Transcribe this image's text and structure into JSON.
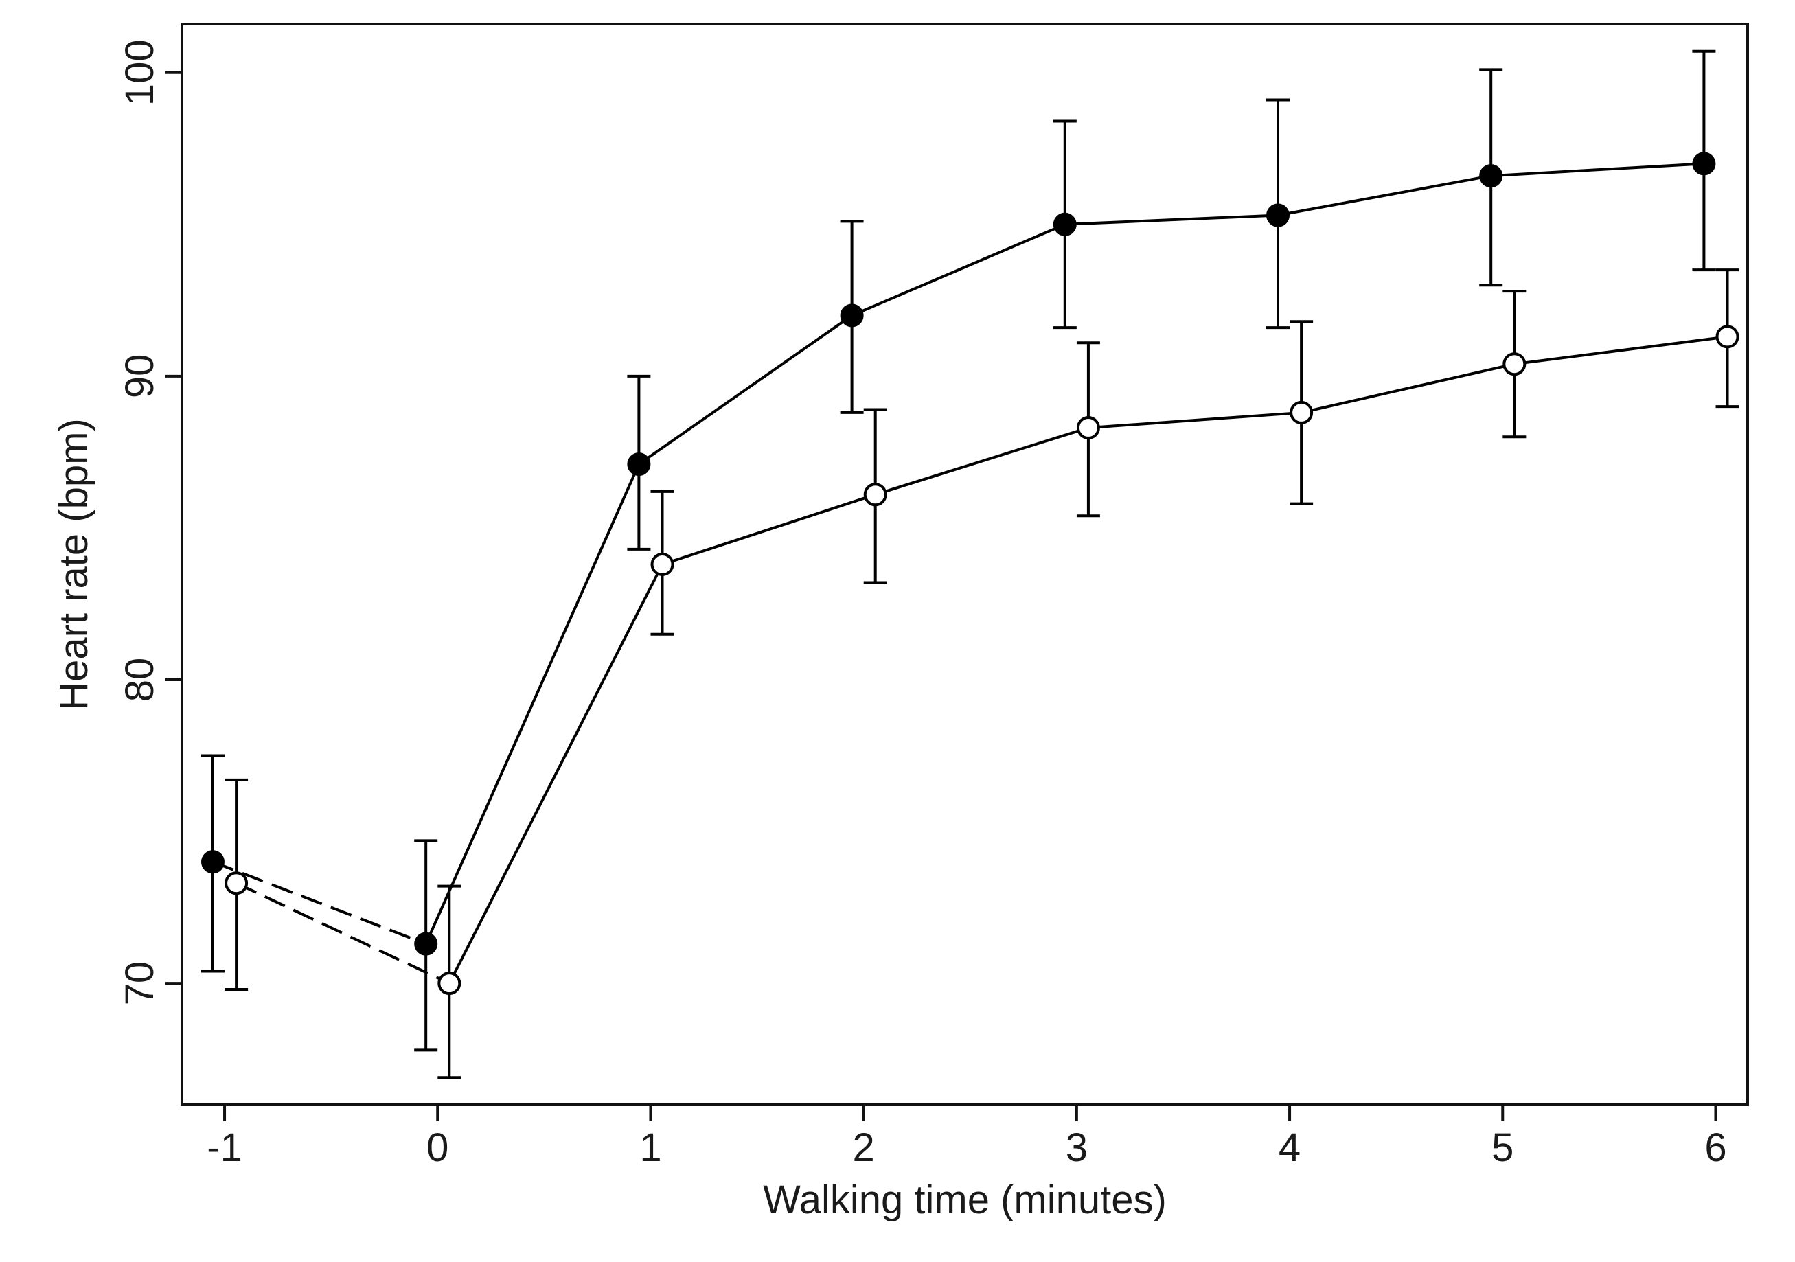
{
  "chart_data": {
    "type": "line",
    "title": "",
    "xlabel": "Walking time  (minutes)",
    "ylabel": "Heart rate (bpm)",
    "xlim": [
      -1.2,
      6.15
    ],
    "ylim": [
      66,
      101.6
    ],
    "xticks": [
      -1,
      0,
      1,
      2,
      3,
      4,
      5,
      6
    ],
    "xtick_labels": [
      "-1",
      "0",
      "1",
      "2",
      "3",
      "4",
      "5",
      "6"
    ],
    "yticks": [
      70,
      80,
      90,
      100
    ],
    "ytick_labels": [
      "70",
      "80",
      "90",
      "100"
    ],
    "grid": false,
    "legend": null,
    "series": [
      {
        "name": "Series A (filled circles)",
        "marker": "filled-circle",
        "color": "#000000",
        "x": [
          -1,
          0,
          1,
          2,
          3,
          4,
          5,
          6
        ],
        "y": [
          74,
          71.3,
          87.1,
          92,
          95,
          95.3,
          96.6,
          97
        ],
        "err_low": [
          70.4,
          67.8,
          84.3,
          88.8,
          91.6,
          91.6,
          93,
          93.5
        ],
        "err_high": [
          77.5,
          74.7,
          90,
          95.1,
          98.4,
          99.1,
          100.1,
          100.7
        ],
        "segment_styles": [
          "dashed",
          "solid",
          "solid",
          "solid",
          "solid",
          "solid",
          "solid"
        ]
      },
      {
        "name": "Series B (open circles)",
        "marker": "open-circle",
        "color": "#000000",
        "x": [
          -1,
          0,
          1,
          2,
          3,
          4,
          5,
          6
        ],
        "y": [
          73.3,
          70,
          83.8,
          86.1,
          88.3,
          88.8,
          90.4,
          91.3
        ],
        "err_low": [
          69.8,
          66.9,
          81.5,
          83.2,
          85.4,
          85.8,
          88,
          89
        ],
        "err_high": [
          76.7,
          73.2,
          86.2,
          88.9,
          91.1,
          91.8,
          92.8,
          93.5
        ],
        "segment_styles": [
          "dashed",
          "solid",
          "solid",
          "solid",
          "solid",
          "solid",
          "solid"
        ]
      }
    ]
  }
}
